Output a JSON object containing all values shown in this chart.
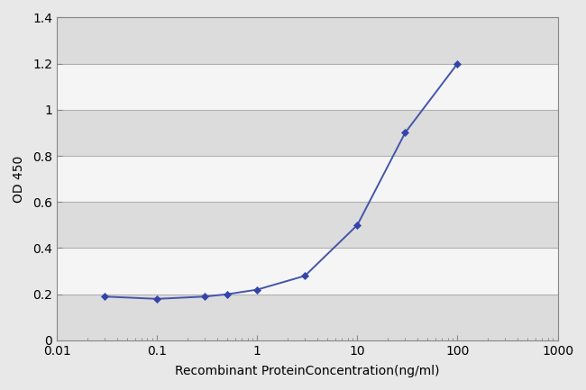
{
  "x": [
    0.03,
    0.1,
    0.3,
    0.5,
    1.0,
    3.0,
    10.0,
    30.0,
    100.0
  ],
  "y": [
    0.19,
    0.18,
    0.19,
    0.2,
    0.22,
    0.28,
    0.5,
    0.9,
    1.2
  ],
  "line_color": "#4455aa",
  "marker_color": "#3344aa",
  "marker": "D",
  "markersize": 4.5,
  "linewidth": 1.4,
  "xlabel": "Recombinant ProteinConcentration(ng/ml)",
  "ylabel": "OD 450",
  "xlim": [
    0.01,
    1000
  ],
  "ylim": [
    0,
    1.4
  ],
  "yticks": [
    0,
    0.2,
    0.4,
    0.6,
    0.8,
    1.0,
    1.2,
    1.4
  ],
  "figure_bg": "#e8e8e8",
  "plot_bg_light": "#f5f5f5",
  "plot_bg_dark": "#dcdcdc",
  "grid_line_color": "#b0b0b0",
  "xlabel_fontsize": 10,
  "ylabel_fontsize": 10,
  "tick_fontsize": 10,
  "spine_color": "#888888"
}
